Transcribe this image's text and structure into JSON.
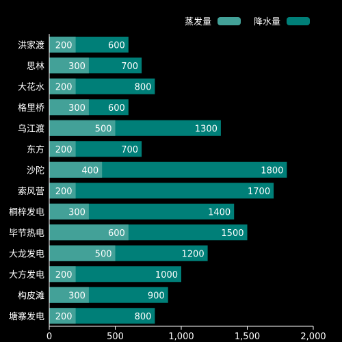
{
  "colors": {
    "background": "#000000",
    "evaporation": "#43A198",
    "precipitation": "#007F78",
    "text": "#ffffff",
    "axis": "#ffffff"
  },
  "chart_data": {
    "type": "bar",
    "orientation": "horizontal",
    "stacked": false,
    "overlapping": true,
    "categories": [
      "洪家渡",
      "思林",
      "大花水",
      "格里桥",
      "乌江渡",
      "东方",
      "沙陀",
      "索风营",
      "桐梓发电",
      "毕节热电",
      "大龙发电",
      "大方发电",
      "构皮滩",
      "塘寨发电"
    ],
    "series": [
      {
        "name": "蒸发量",
        "color": "#43A198",
        "values": [
          200,
          300,
          200,
          300,
          500,
          200,
          400,
          200,
          300,
          600,
          500,
          200,
          300,
          200
        ]
      },
      {
        "name": "降水量",
        "color": "#007F78",
        "values": [
          600,
          700,
          800,
          600,
          1300,
          700,
          1800,
          1700,
          1400,
          1500,
          1200,
          1000,
          900,
          800
        ]
      }
    ],
    "xlim": [
      0,
      2000
    ],
    "xticks": [
      "0",
      "500",
      "1,000",
      "1,500",
      "2,000"
    ],
    "xtick_values": [
      0,
      500,
      1000,
      1500,
      2000
    ],
    "legend_position": "top-right",
    "grid": false
  }
}
